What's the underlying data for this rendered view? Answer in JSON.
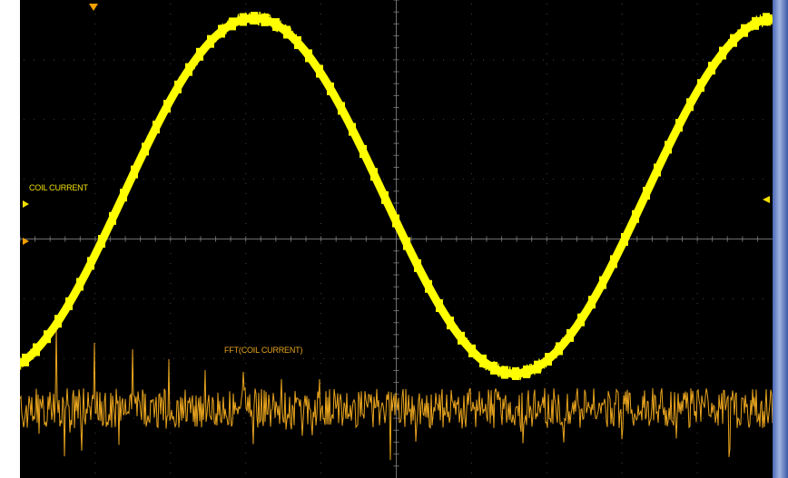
{
  "display": {
    "background": "#000000",
    "grid_color": "#7a7a7a",
    "ch1_color": "#ffff00",
    "math_color": "#e8a41e",
    "trigger_marker_color": "#f0a000",
    "bezel_color": "#4a68b8"
  },
  "traces": {
    "ch1": {
      "label": "COIL CURRENT"
    },
    "math": {
      "label": "FFT(COIL CURRENT)"
    }
  }
}
